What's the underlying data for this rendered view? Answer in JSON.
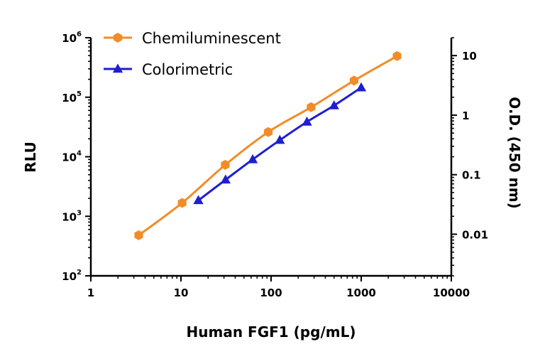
{
  "chart_data": {
    "type": "line",
    "xlabel": "Human FGF1 (pg/mL)",
    "ylabel": "RLU",
    "y2label": "O.D. (450 nm)",
    "x_scale": "log",
    "y_scale": "log",
    "y2_scale": "log",
    "xlim": [
      1,
      10000
    ],
    "ylim": [
      100,
      1000000
    ],
    "y2lim": [
      0.002,
      20
    ],
    "x_ticks": [
      {
        "value": 1,
        "label": "1"
      },
      {
        "value": 10,
        "label": "10"
      },
      {
        "value": 100,
        "label": "100"
      },
      {
        "value": 1000,
        "label": "1000"
      },
      {
        "value": 10000,
        "label": "10000"
      }
    ],
    "y_ticks": [
      {
        "value": 100,
        "base": "10",
        "exp": "2"
      },
      {
        "value": 1000,
        "base": "10",
        "exp": "3"
      },
      {
        "value": 10000,
        "base": "10",
        "exp": "4"
      },
      {
        "value": 100000,
        "base": "10",
        "exp": "5"
      },
      {
        "value": 1000000,
        "base": "10",
        "exp": "6"
      }
    ],
    "y2_ticks": [
      {
        "value": 0.01,
        "label": "0.01"
      },
      {
        "value": 0.1,
        "label": "0.1"
      },
      {
        "value": 1,
        "label": "1"
      },
      {
        "value": 10,
        "label": "10"
      }
    ],
    "grid": false,
    "legend_position": "top-left",
    "series": [
      {
        "name": "Chemiluminescent",
        "axis": "left",
        "color": "#F28C28",
        "marker": "hexagon",
        "x": [
          3.4,
          10.3,
          31,
          93,
          278,
          833,
          2500
        ],
        "y": [
          480,
          1680,
          7300,
          26000,
          68000,
          190000,
          490000
        ]
      },
      {
        "name": "Colorimetric",
        "axis": "right",
        "color": "#1E1ED2",
        "marker": "triangle",
        "x": [
          15.6,
          31.25,
          62.5,
          125,
          250,
          500,
          1000
        ],
        "y": [
          0.037,
          0.082,
          0.18,
          0.38,
          0.77,
          1.45,
          2.9
        ]
      }
    ]
  }
}
